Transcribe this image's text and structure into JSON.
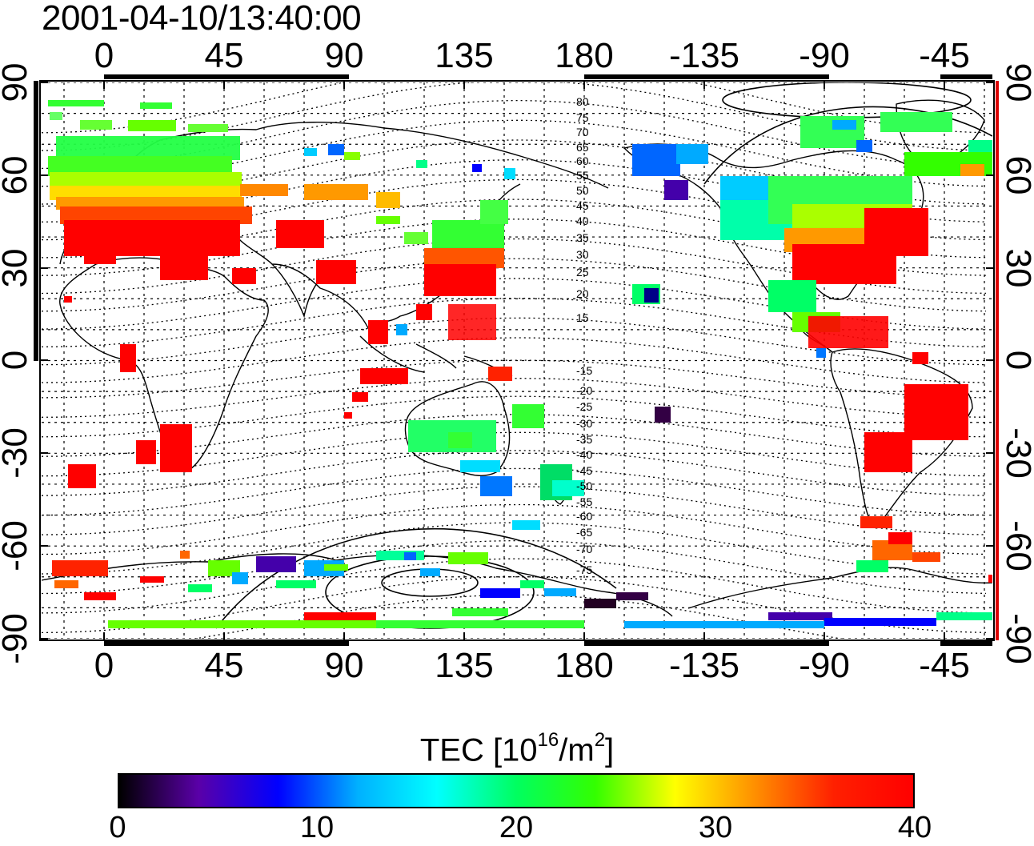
{
  "timestamp": "2001-04-10/13:40:00",
  "map": {
    "lon_ticks": [
      "0",
      "45",
      "90",
      "135",
      "180",
      "-135",
      "-90",
      "-45"
    ],
    "lat_ticks": [
      "90",
      "60",
      "30",
      "0",
      "-30",
      "-60",
      "-90"
    ],
    "magnetic_latitude_labels": [
      "80",
      "75",
      "70",
      "65",
      "60",
      "55",
      "50",
      "45",
      "40",
      "35",
      "30",
      "25",
      "20",
      "15",
      "-15",
      "-20",
      "-25",
      "-30",
      "-35",
      "-40",
      "-45",
      "-50",
      "-55",
      "-60",
      "-65",
      "-70",
      "-75"
    ]
  },
  "colorbar": {
    "title_prefix": "TEC  [10",
    "title_exp1": "16",
    "title_mid": "/m",
    "title_exp2": "2",
    "title_suffix": "]",
    "ticks": [
      "0",
      "10",
      "20",
      "30",
      "40"
    ],
    "range": [
      0,
      40
    ],
    "colors": [
      "#000000",
      "#5a00a8",
      "#0000ff",
      "#00b0ff",
      "#00ffff",
      "#00ff60",
      "#33ff00",
      "#ffff00",
      "#ff9000",
      "#ff2000",
      "#ff0000"
    ]
  }
}
